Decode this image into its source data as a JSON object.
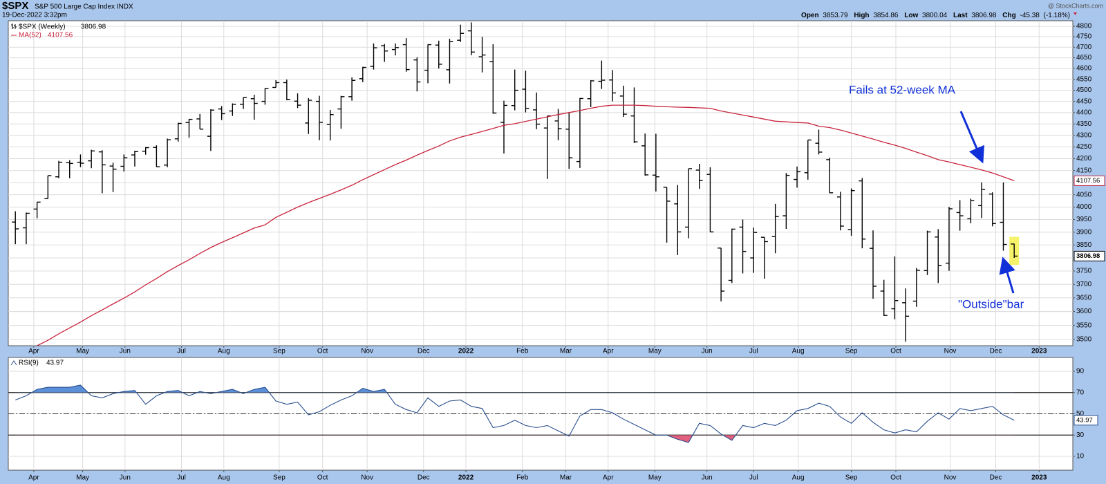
{
  "chart_data": [
    {
      "type": "ohlc",
      "title": "$SPX",
      "subtitle": "S&P 500 Large Cap Index INDX",
      "date": "19-Dec-2022 3:32pm",
      "credit": "@ StockCharts.com",
      "header_labels": {
        "open": "Open",
        "high": "High",
        "low": "Low",
        "last": "Last",
        "change": "Chg"
      },
      "change": -45.38,
      "change_pct_label": "(-1.18%)",
      "name": "$SPX (Weekly)",
      "color": "#000000",
      "highlight_color": "#f6f36a",
      "yscale": "log",
      "grid": true,
      "open": [
        3940,
        3917,
        3992,
        4034,
        4124,
        4183,
        4185,
        4191,
        4229,
        4169,
        4168,
        4216,
        4232,
        4248,
        4173,
        4285,
        4356,
        4372,
        4296,
        4416,
        4407,
        4437,
        4462,
        4450,
        4513,
        4535,
        4451,
        4354,
        4450,
        4348,
        4416,
        4471,
        4553,
        4610,
        4707,
        4689,
        4712,
        4640,
        4592,
        4710,
        4594,
        4733,
        4778,
        4655,
        4632,
        4357,
        4431,
        4505,
        4412,
        4332,
        4363,
        4327,
        4188,
        4462,
        4541,
        4547,
        4474,
        4385,
        4255,
        4131,
        4081,
        4013,
        3920,
        4152,
        4134,
        3838,
        3715,
        3920,
        3800,
        3880,
        3883,
        3965,
        4113,
        4141,
        4266,
        4196,
        4041,
        3910,
        4107,
        3837,
        3675,
        3610,
        3632,
        3638,
        3752,
        3881,
        3780,
        3978,
        3953,
        4006,
        4053,
        3939,
        3853.79
      ],
      "high": [
        3983,
        3978,
        4020,
        4129,
        4191,
        4194,
        4218,
        4238,
        4236,
        4183,
        4218,
        4234,
        4249,
        4257,
        4286,
        4355,
        4372,
        4394,
        4415,
        4429,
        4441,
        4468,
        4480,
        4509,
        4546,
        4549,
        4486,
        4465,
        4475,
        4412,
        4475,
        4559,
        4608,
        4718,
        4715,
        4718,
        4743,
        4652,
        4713,
        4731,
        4740,
        4808,
        4819,
        4749,
        4714,
        4453,
        4595,
        4590,
        4490,
        4385,
        4416,
        4402,
        4465,
        4546,
        4637,
        4593,
        4521,
        4513,
        4308,
        4307,
        4081,
        4090,
        4158,
        4178,
        4164,
        3838,
        3914,
        3950,
        3918,
        3880,
        4013,
        4140,
        4167,
        4280,
        4325,
        4204,
        4062,
        4076,
        4119,
        3907,
        3717,
        3806,
        3685,
        3762,
        3906,
        3912,
        4001,
        4028,
        4034,
        4101,
        4060,
        4101,
        3854.86
      ],
      "low": [
        3853,
        3853,
        3955,
        4034,
        4118,
        4118,
        4164,
        4160,
        4056,
        4061,
        4146,
        4167,
        4217,
        4165,
        4164,
        4273,
        4290,
        4327,
        4233,
        4367,
        4385,
        4416,
        4368,
        4435,
        4513,
        4455,
        4420,
        4306,
        4279,
        4278,
        4329,
        4453,
        4537,
        4595,
        4631,
        4661,
        4585,
        4495,
        4532,
        4600,
        4531,
        4725,
        4662,
        4582,
        4395,
        4222,
        4410,
        4401,
        4327,
        4115,
        4279,
        4157,
        4161,
        4424,
        4506,
        4450,
        4381,
        4267,
        4129,
        4063,
        3859,
        3811,
        3876,
        4074,
        3900,
        3637,
        3705,
        3741,
        3743,
        3721,
        3818,
        3913,
        4079,
        4112,
        4218,
        4057,
        3907,
        3886,
        3837,
        3647,
        3584,
        3572,
        3492,
        3617,
        3735,
        3705,
        3751,
        3906,
        3935,
        3956,
        3923,
        3828,
        3800.04
      ],
      "close": [
        3913,
        3975,
        4020,
        4129,
        4185,
        4180,
        4181,
        4233,
        4174,
        4156,
        4204,
        4230,
        4247,
        4166,
        4281,
        4352,
        4370,
        4327,
        4411,
        4395,
        4437,
        4468,
        4441,
        4509,
        4535,
        4459,
        4433,
        4455,
        4357,
        4391,
        4471,
        4545,
        4605,
        4697,
        4682,
        4698,
        4595,
        4538,
        4712,
        4620,
        4726,
        4766,
        4677,
        4663,
        4398,
        4432,
        4500,
        4419,
        4349,
        4385,
        4329,
        4204,
        4463,
        4543,
        4546,
        4488,
        4393,
        4272,
        4132,
        4124,
        4024,
        3901,
        4158,
        4109,
        3901,
        3675,
        3912,
        3825,
        3899,
        3863,
        3962,
        4130,
        4145,
        4280,
        4228,
        4058,
        3924,
        4067,
        3873,
        3693,
        3586,
        3640,
        3583,
        3753,
        3901,
        3771,
        3993,
        3965,
        4026,
        4072,
        3934,
        3852,
        3806.98
      ],
      "overlays": [
        {
          "name": "MA(52)",
          "color": "#c8243c",
          "values": [
            3440,
            3460,
            3478,
            3497,
            3520,
            3541,
            3562,
            3585,
            3606,
            3628,
            3649,
            3672,
            3698,
            3722,
            3748,
            3771,
            3793,
            3817,
            3840,
            3860,
            3878,
            3897,
            3916,
            3929,
            3959,
            3979,
            4000,
            4018,
            4035,
            4052,
            4070,
            4089,
            4112,
            4133,
            4154,
            4175,
            4194,
            4215,
            4235,
            4254,
            4276,
            4292,
            4304,
            4317,
            4330,
            4344,
            4351,
            4361,
            4371,
            4381,
            4391,
            4400,
            4409,
            4419,
            4428,
            4433,
            4433,
            4433,
            4431,
            4428,
            4426,
            4424,
            4423,
            4421,
            4419,
            4407,
            4398,
            4389,
            4380,
            4371,
            4362,
            4359,
            4356,
            4354,
            4340,
            4334,
            4323,
            4310,
            4297,
            4284,
            4270,
            4258,
            4244,
            4228,
            4213,
            4196,
            4186,
            4175,
            4164,
            4153,
            4140,
            4124,
            4107.56
          ]
        }
      ],
      "ylim": [
        3478,
        4827
      ],
      "yticks": [
        3500,
        3550,
        3600,
        3650,
        3700,
        3750,
        3800,
        3850,
        3900,
        3950,
        4000,
        4050,
        4100,
        4150,
        4200,
        4250,
        4300,
        4350,
        4400,
        4450,
        4500,
        4550,
        4600,
        4650,
        4700,
        4750,
        4800
      ],
      "xlim": [
        -0.65,
        97.4
      ],
      "xticks": [
        {
          "value": 1.7,
          "label": "Apr"
        },
        {
          "value": 6.2,
          "label": "May"
        },
        {
          "value": 10.1,
          "label": "Jun"
        },
        {
          "value": 15.3,
          "label": "Jul"
        },
        {
          "value": 19.2,
          "label": "Aug"
        },
        {
          "value": 24.3,
          "label": "Sep"
        },
        {
          "value": 28.3,
          "label": "Oct"
        },
        {
          "value": 32.4,
          "label": "Nov"
        },
        {
          "value": 37.6,
          "label": "Dec"
        },
        {
          "value": 41.5,
          "label": "2022"
        },
        {
          "value": 46.7,
          "label": "Feb"
        },
        {
          "value": 50.7,
          "label": "Mar"
        },
        {
          "value": 54.6,
          "label": "Apr"
        },
        {
          "value": 58.9,
          "label": "May"
        },
        {
          "value": 63.7,
          "label": "Jun"
        },
        {
          "value": 68.0,
          "label": "Jul"
        },
        {
          "value": 72.1,
          "label": "Aug"
        },
        {
          "value": 77.0,
          "label": "Sep"
        },
        {
          "value": 81.1,
          "label": "Oct"
        },
        {
          "value": 86.1,
          "label": "Nov"
        },
        {
          "value": 90.3,
          "label": "Dec"
        },
        {
          "value": 94.3,
          "label": "2023"
        }
      ],
      "annotations": [
        "Fails at 52-week MA",
        "\"Outside\"bar"
      ]
    },
    {
      "type": "line",
      "grid": true,
      "series": [
        {
          "name": "RSI(9)",
          "color": "#2a4f8e",
          "values": [
            63,
            67,
            73,
            75,
            75,
            75,
            77,
            67,
            65,
            69,
            71,
            72,
            59,
            67,
            71,
            72,
            67,
            71,
            69,
            71,
            73,
            69,
            73,
            75,
            62,
            59,
            61,
            49,
            52,
            58,
            63,
            67,
            74,
            71,
            73,
            59,
            54,
            51,
            65,
            57,
            62,
            63,
            57,
            55,
            37,
            39,
            44,
            39,
            37,
            39,
            34,
            29,
            48,
            54,
            54,
            51,
            45,
            40,
            35,
            30,
            30,
            26,
            23,
            41,
            39,
            31,
            25,
            39,
            37,
            41,
            39,
            44,
            53,
            55,
            60,
            57,
            47,
            41,
            51,
            42,
            35,
            32,
            35,
            33,
            43,
            51,
            45,
            55,
            53,
            55,
            57,
            49,
            43.97
          ]
        }
      ],
      "levels": [
        70,
        50,
        30
      ],
      "level_styles": [
        "solid",
        "dashdot",
        "solid"
      ],
      "overbought_color": "#5b8fd8",
      "oversold_color": "#e0607e",
      "ylim": [
        -3,
        103
      ],
      "yticks": [
        10,
        30,
        50,
        70,
        90
      ],
      "xlim": [
        -0.65,
        97.4
      ],
      "xticks": [
        {
          "value": 1.7,
          "label": "Apr"
        },
        {
          "value": 6.2,
          "label": "May"
        },
        {
          "value": 10.1,
          "label": "Jun"
        },
        {
          "value": 15.3,
          "label": "Jul"
        },
        {
          "value": 19.2,
          "label": "Aug"
        },
        {
          "value": 24.3,
          "label": "Sep"
        },
        {
          "value": 28.3,
          "label": "Oct"
        },
        {
          "value": 32.4,
          "label": "Nov"
        },
        {
          "value": 37.6,
          "label": "Dec"
        },
        {
          "value": 41.5,
          "label": "2022"
        },
        {
          "value": 46.7,
          "label": "Feb"
        },
        {
          "value": 50.7,
          "label": "Mar"
        },
        {
          "value": 54.6,
          "label": "Apr"
        },
        {
          "value": 58.9,
          "label": "May"
        },
        {
          "value": 63.7,
          "label": "Jun"
        },
        {
          "value": 68.0,
          "label": "Jul"
        },
        {
          "value": 72.1,
          "label": "Aug"
        },
        {
          "value": 77.0,
          "label": "Sep"
        },
        {
          "value": 81.1,
          "label": "Oct"
        },
        {
          "value": 86.1,
          "label": "Nov"
        },
        {
          "value": 90.3,
          "label": "Dec"
        },
        {
          "value": 94.3,
          "label": "2023"
        }
      ]
    }
  ]
}
